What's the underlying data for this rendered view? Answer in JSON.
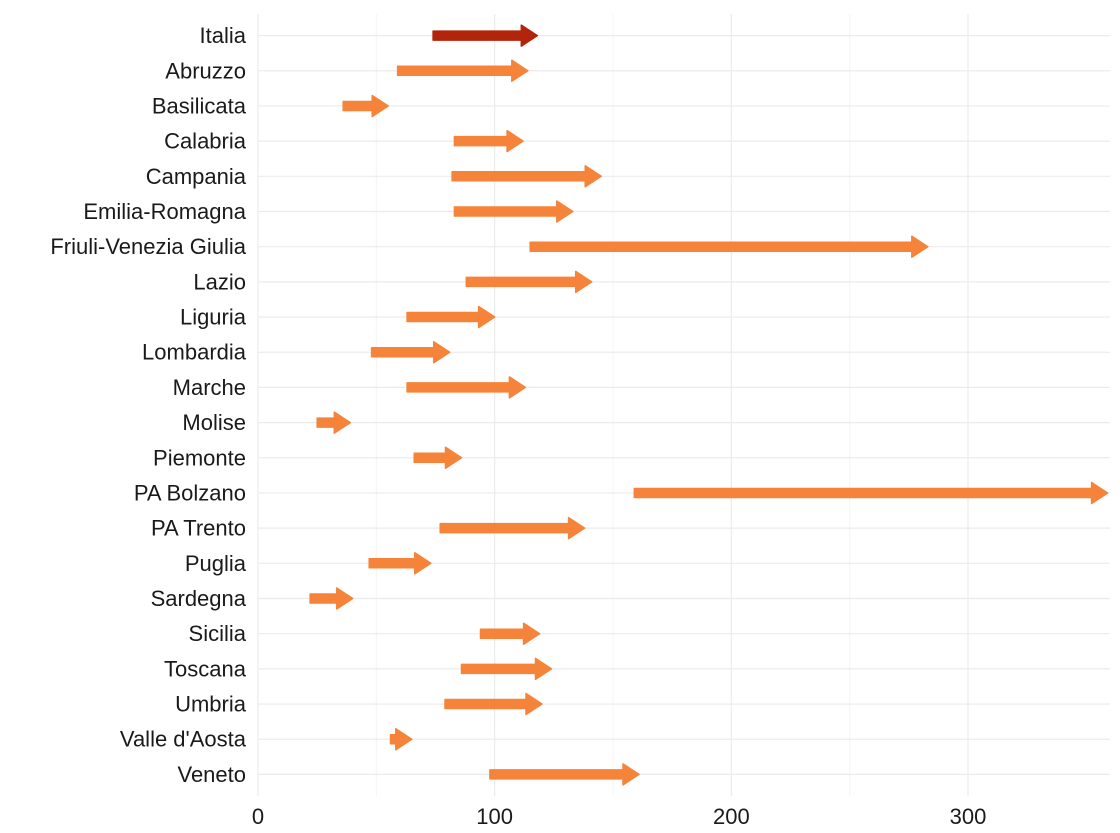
{
  "chart_data": {
    "type": "arrow",
    "title": "",
    "xlabel": "",
    "ylabel": "",
    "xlim": [
      0,
      360
    ],
    "xticks": [
      0,
      100,
      200,
      300
    ],
    "grid": true,
    "legend": "none",
    "categories": [
      "Italia",
      "Abruzzo",
      "Basilicata",
      "Calabria",
      "Campania",
      "Emilia-Romagna",
      "Friuli-Venezia Giulia",
      "Lazio",
      "Liguria",
      "Lombardia",
      "Marche",
      "Molise",
      "Piemonte",
      "PA Bolzano",
      "PA Trento",
      "Puglia",
      "Sardegna",
      "Sicilia",
      "Toscana",
      "Umbria",
      "Valle d'Aosta",
      "Veneto"
    ],
    "start": [
      74,
      59,
      36,
      83,
      82,
      83,
      115,
      88,
      63,
      48,
      63,
      25,
      66,
      159,
      77,
      47,
      22,
      94,
      86,
      79,
      56,
      98
    ],
    "end": [
      118,
      114,
      55,
      112,
      145,
      133,
      283,
      141,
      100,
      81,
      113,
      39,
      86,
      359,
      138,
      73,
      40,
      119,
      124,
      120,
      65,
      161
    ],
    "colors": {
      "highlight": "#b2250b",
      "default": "#f5843a"
    },
    "highlight": [
      "Italia"
    ]
  }
}
